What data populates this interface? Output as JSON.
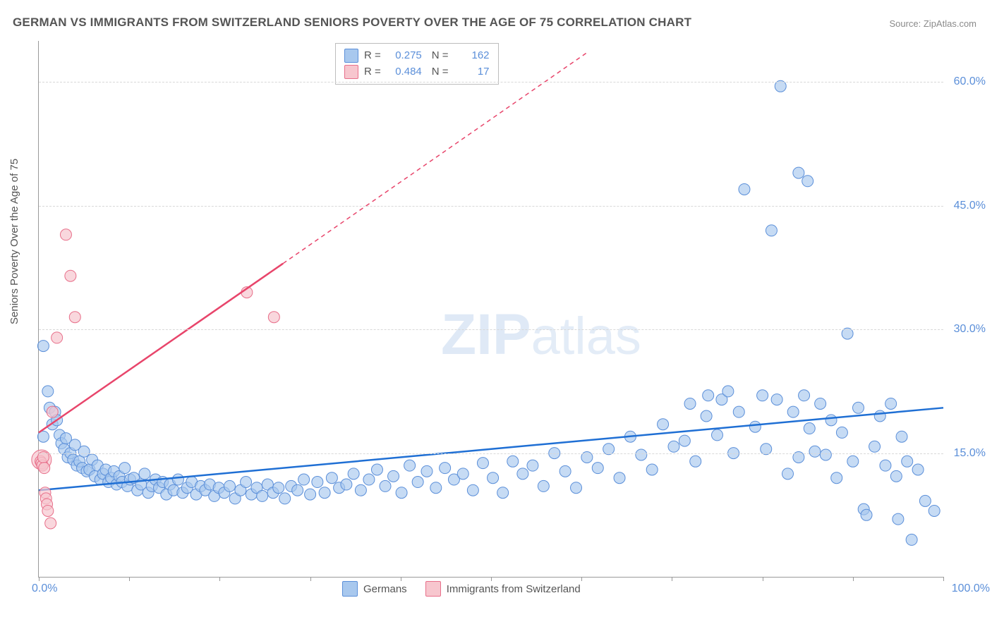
{
  "title": "GERMAN VS IMMIGRANTS FROM SWITZERLAND SENIORS POVERTY OVER THE AGE OF 75 CORRELATION CHART",
  "source": "Source: ZipAtlas.com",
  "y_axis_label": "Seniors Poverty Over the Age of 75",
  "watermark": {
    "zip": "ZIP",
    "atlas": "atlas"
  },
  "chart": {
    "type": "scatter",
    "xlim": [
      0,
      100
    ],
    "ylim": [
      0,
      65
    ],
    "x_tick_positions": [
      0,
      10,
      20,
      30,
      40,
      50,
      60,
      70,
      80,
      90,
      100
    ],
    "x_tick_labels": {
      "min": "0.0%",
      "max": "100.0%"
    },
    "y_gridlines": [
      15,
      30,
      45,
      60
    ],
    "y_tick_labels": [
      "15.0%",
      "30.0%",
      "45.0%",
      "60.0%"
    ],
    "grid_color": "#d8d8d8",
    "background_color": "#ffffff",
    "axis_color": "#999999",
    "axis_label_color": "#555555",
    "tick_label_color": "#5b8fd9",
    "tick_label_fontsize": 16,
    "title_fontsize": 17,
    "series": [
      {
        "name": "Germans",
        "marker_fill": "#a8c8ee",
        "marker_stroke": "#5b8fd9",
        "marker_opacity": 0.65,
        "marker_radius": 8,
        "line_color": "#1f6fd4",
        "line_width": 2.5,
        "r": "0.275",
        "n": "162",
        "trend": {
          "x1": 0,
          "y1": 10.5,
          "x2": 100,
          "y2": 20.5
        },
        "points": [
          [
            0.5,
            28
          ],
          [
            0.5,
            17
          ],
          [
            1,
            22.5
          ],
          [
            1.2,
            20.5
          ],
          [
            1.5,
            18.5
          ],
          [
            1.8,
            20
          ],
          [
            2,
            19
          ],
          [
            2.3,
            17.2
          ],
          [
            2.5,
            16.2
          ],
          [
            2.8,
            15.5
          ],
          [
            3,
            16.8
          ],
          [
            3.2,
            14.5
          ],
          [
            3.5,
            15
          ],
          [
            3.8,
            14.2
          ],
          [
            4,
            16
          ],
          [
            4.2,
            13.5
          ],
          [
            4.5,
            14
          ],
          [
            4.8,
            13.2
          ],
          [
            5,
            15.2
          ],
          [
            5.3,
            12.8
          ],
          [
            5.6,
            13
          ],
          [
            5.9,
            14.2
          ],
          [
            6.2,
            12.2
          ],
          [
            6.5,
            13.5
          ],
          [
            6.8,
            11.8
          ],
          [
            7.1,
            12.5
          ],
          [
            7.4,
            13
          ],
          [
            7.7,
            11.5
          ],
          [
            8,
            12
          ],
          [
            8.3,
            12.8
          ],
          [
            8.6,
            11.2
          ],
          [
            8.9,
            12.2
          ],
          [
            9.2,
            11.5
          ],
          [
            9.5,
            13.2
          ],
          [
            9.8,
            11
          ],
          [
            10.1,
            11.8
          ],
          [
            10.5,
            12
          ],
          [
            10.9,
            10.5
          ],
          [
            11.3,
            11.2
          ],
          [
            11.7,
            12.5
          ],
          [
            12.1,
            10.2
          ],
          [
            12.5,
            11
          ],
          [
            12.9,
            11.8
          ],
          [
            13.3,
            10.8
          ],
          [
            13.7,
            11.5
          ],
          [
            14.1,
            10
          ],
          [
            14.5,
            11.2
          ],
          [
            14.9,
            10.5
          ],
          [
            15.4,
            11.8
          ],
          [
            15.9,
            10.2
          ],
          [
            16.4,
            10.8
          ],
          [
            16.9,
            11.5
          ],
          [
            17.4,
            10
          ],
          [
            17.9,
            11
          ],
          [
            18.4,
            10.5
          ],
          [
            18.9,
            11.2
          ],
          [
            19.4,
            9.8
          ],
          [
            19.9,
            10.8
          ],
          [
            20.5,
            10.2
          ],
          [
            21.1,
            11
          ],
          [
            21.7,
            9.5
          ],
          [
            22.3,
            10.5
          ],
          [
            22.9,
            11.5
          ],
          [
            23.5,
            10
          ],
          [
            24.1,
            10.8
          ],
          [
            24.7,
            9.8
          ],
          [
            25.3,
            11.2
          ],
          [
            25.9,
            10.2
          ],
          [
            26.5,
            10.8
          ],
          [
            27.2,
            9.5
          ],
          [
            27.9,
            11
          ],
          [
            28.6,
            10.5
          ],
          [
            29.3,
            11.8
          ],
          [
            30,
            10
          ],
          [
            30.8,
            11.5
          ],
          [
            31.6,
            10.2
          ],
          [
            32.4,
            12
          ],
          [
            33.2,
            10.8
          ],
          [
            34,
            11.2
          ],
          [
            34.8,
            12.5
          ],
          [
            35.6,
            10.5
          ],
          [
            36.5,
            11.8
          ],
          [
            37.4,
            13
          ],
          [
            38.3,
            11
          ],
          [
            39.2,
            12.2
          ],
          [
            40.1,
            10.2
          ],
          [
            41,
            13.5
          ],
          [
            41.9,
            11.5
          ],
          [
            42.9,
            12.8
          ],
          [
            43.9,
            10.8
          ],
          [
            44.9,
            13.2
          ],
          [
            45.9,
            11.8
          ],
          [
            46.9,
            12.5
          ],
          [
            48,
            10.5
          ],
          [
            49.1,
            13.8
          ],
          [
            50.2,
            12
          ],
          [
            51.3,
            10.2
          ],
          [
            52.4,
            14
          ],
          [
            53.5,
            12.5
          ],
          [
            54.6,
            13.5
          ],
          [
            55.8,
            11
          ],
          [
            57,
            15
          ],
          [
            58.2,
            12.8
          ],
          [
            59.4,
            10.8
          ],
          [
            60.6,
            14.5
          ],
          [
            61.8,
            13.2
          ],
          [
            63,
            15.5
          ],
          [
            64.2,
            12
          ],
          [
            65.4,
            17
          ],
          [
            66.6,
            14.8
          ],
          [
            67.8,
            13
          ],
          [
            69,
            18.5
          ],
          [
            70.2,
            15.8
          ],
          [
            71.4,
            16.5
          ],
          [
            72,
            21
          ],
          [
            72.6,
            14
          ],
          [
            73.8,
            19.5
          ],
          [
            74,
            22
          ],
          [
            75,
            17.2
          ],
          [
            75.5,
            21.5
          ],
          [
            76.2,
            22.5
          ],
          [
            76.8,
            15
          ],
          [
            77.4,
            20
          ],
          [
            78,
            47
          ],
          [
            79.2,
            18.2
          ],
          [
            80,
            22
          ],
          [
            80.4,
            15.5
          ],
          [
            81,
            42
          ],
          [
            81.6,
            21.5
          ],
          [
            82,
            59.5
          ],
          [
            82.8,
            12.5
          ],
          [
            83.4,
            20
          ],
          [
            84,
            14.5
          ],
          [
            84,
            49
          ],
          [
            84.6,
            22
          ],
          [
            85,
            48
          ],
          [
            85.2,
            18
          ],
          [
            85.8,
            15.2
          ],
          [
            86.4,
            21
          ],
          [
            87,
            14.8
          ],
          [
            87.6,
            19
          ],
          [
            88.2,
            12
          ],
          [
            88.8,
            17.5
          ],
          [
            89.4,
            29.5
          ],
          [
            90,
            14
          ],
          [
            90.6,
            20.5
          ],
          [
            91.2,
            8.2
          ],
          [
            91.5,
            7.5
          ],
          [
            92.4,
            15.8
          ],
          [
            93,
            19.5
          ],
          [
            93.6,
            13.5
          ],
          [
            94.2,
            21
          ],
          [
            94.8,
            12.2
          ],
          [
            95,
            7
          ],
          [
            95.4,
            17
          ],
          [
            96,
            14
          ],
          [
            96.5,
            4.5
          ],
          [
            97.2,
            13
          ],
          [
            98,
            9.2
          ],
          [
            99,
            8
          ]
        ]
      },
      {
        "name": "Immigrants from Switzerland",
        "marker_fill": "#f7c6ce",
        "marker_stroke": "#e86f8a",
        "marker_opacity": 0.7,
        "marker_radius": 8,
        "line_color": "#e8456b",
        "line_width": 2.5,
        "r": "0.484",
        "n": "17",
        "trend": {
          "x1": 0,
          "y1": 17.5,
          "x2": 27,
          "y2": 38
        },
        "trend_dash": {
          "x1": 27,
          "y1": 38,
          "x2": 60.5,
          "y2": 63.5
        },
        "points": [
          [
            0.2,
            14
          ],
          [
            0.3,
            13.8
          ],
          [
            0.4,
            13.5
          ],
          [
            0.5,
            14.5
          ],
          [
            0.6,
            13.2
          ],
          [
            0.7,
            10.2
          ],
          [
            0.8,
            9.5
          ],
          [
            0.9,
            8.8
          ],
          [
            1,
            8
          ],
          [
            1.3,
            6.5
          ],
          [
            1.5,
            20
          ],
          [
            2,
            29
          ],
          [
            3,
            41.5
          ],
          [
            3.5,
            36.5
          ],
          [
            4,
            31.5
          ],
          [
            23,
            34.5
          ],
          [
            26,
            31.5
          ]
        ],
        "large_points": [
          [
            0.3,
            14.2,
            14
          ]
        ]
      }
    ]
  },
  "legend_top": {
    "rows": [
      {
        "swatch": "blue",
        "r_label": "R =",
        "r_val": "0.275",
        "n_label": "N =",
        "n_val": "162"
      },
      {
        "swatch": "pink",
        "r_label": "R =",
        "r_val": "0.484",
        "n_label": "N =",
        "n_val": "17"
      }
    ]
  },
  "legend_bottom": {
    "items": [
      {
        "swatch": "blue",
        "label": "Germans"
      },
      {
        "swatch": "pink",
        "label": "Immigrants from Switzerland"
      }
    ]
  }
}
